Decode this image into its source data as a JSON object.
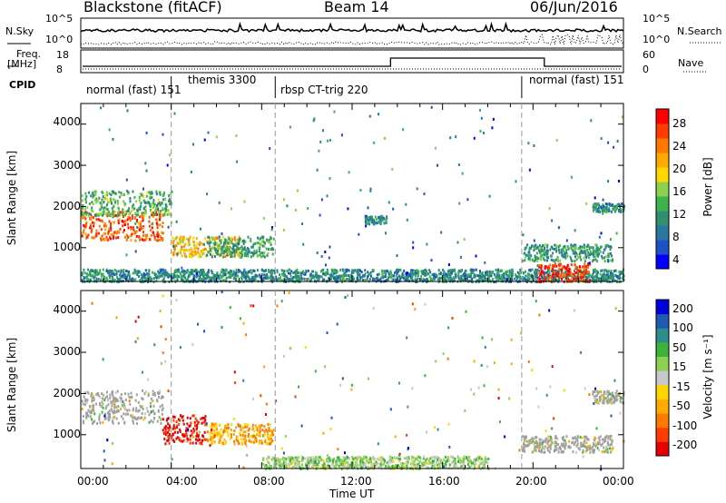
{
  "header": {
    "left": "Blackstone (fitACF)",
    "center": "Beam 14",
    "right": "06/Jun/2016"
  },
  "summary_panels": {
    "nsky_label": "N.Sky",
    "nsky_ticks": [
      "10^5",
      "10^0"
    ],
    "nsearch_label": "N.Search",
    "freq_label": "Freq.",
    "freq_unit": "[MHz]",
    "freq_ticks": [
      "18",
      "8"
    ],
    "nave_label": "Nave",
    "nave_ticks": [
      "60",
      "0"
    ],
    "cpid_label": "CPID"
  },
  "cpid_segments": [
    {
      "label": "normal (fast) 151",
      "start_hour": 0.0
    },
    {
      "label": "themis 3300",
      "start_hour": 4.0
    },
    {
      "label": "rbsp CT-trig 220",
      "start_hour": 8.6
    },
    {
      "label": "normal (fast) 151",
      "start_hour": 19.5
    }
  ],
  "x_tick_labels": [
    "00:00",
    "04:00",
    "08:00",
    "12:00",
    "16:00",
    "20:00",
    "00:00"
  ],
  "x_axis_title": "Time UT",
  "power_panel": {
    "ylabel": "Slant Range [km]",
    "y_ticks": [
      "4000",
      "3000",
      "2000",
      "1000"
    ],
    "colorbar_label": "Power [dB]",
    "colorbar_ticks": [
      "28",
      "24",
      "20",
      "16",
      "12",
      "8",
      "4"
    ],
    "colors": [
      "#0000ff",
      "#1e50c8",
      "#2878a0",
      "#2f8f6e",
      "#3cb44b",
      "#8cd250",
      "#ffd700",
      "#ffaa00",
      "#ff7800",
      "#ff3c00",
      "#ff0000"
    ]
  },
  "velocity_panel": {
    "ylabel": "Slant Range [km]",
    "y_ticks": [
      "4000",
      "3000",
      "2000",
      "1000"
    ],
    "colorbar_label": "Velocity [m s⁻¹]",
    "colorbar_ticks": [
      "200",
      "100",
      "50",
      "15",
      "-15",
      "-50",
      "-100",
      "-200"
    ],
    "colors": [
      "#0000dc",
      "#1e5ab4",
      "#2d8c8c",
      "#3cb43c",
      "#8cd250",
      "#c8c8c8",
      "#ffd700",
      "#ffaa00",
      "#ff7800",
      "#ff3c00",
      "#e60000"
    ],
    "ground_scatter_color": "#a0a0a0"
  },
  "chart_data": [
    {
      "type": "heatmap",
      "title": "Blackstone (fitACF)  Beam 14  06/Jun/2016",
      "xlabel": "Time UT",
      "ylabel": "Slant Range [km]",
      "xlim_hours": [
        0,
        24
      ],
      "ylim_km": [
        180,
        4500
      ],
      "colorbar": "Power [dB]",
      "colorbar_range": [
        0,
        30
      ],
      "features": [
        {
          "hours": [
            0,
            3.6
          ],
          "range_km": [
            1200,
            1900
          ],
          "power_db": 26
        },
        {
          "hours": [
            0,
            4.0
          ],
          "range_km": [
            1800,
            2400
          ],
          "power_db": 12
        },
        {
          "hours": [
            4.0,
            7.0
          ],
          "range_km": [
            800,
            1300
          ],
          "power_db": 20
        },
        {
          "hours": [
            5.5,
            8.5
          ],
          "range_km": [
            800,
            1300
          ],
          "power_db": 10
        },
        {
          "hours": [
            0,
            24
          ],
          "range_km": [
            200,
            500
          ],
          "power_db": 8
        },
        {
          "hours": [
            12.5,
            13.5
          ],
          "range_km": [
            1600,
            1800
          ],
          "power_db": 8
        },
        {
          "hours": [
            20.2,
            22.5
          ],
          "range_km": [
            200,
            650
          ],
          "power_db": 28
        },
        {
          "hours": [
            19.5,
            23.5
          ],
          "range_km": [
            700,
            1100
          ],
          "power_db": 10
        },
        {
          "hours": [
            22.6,
            24
          ],
          "range_km": [
            1900,
            2100
          ],
          "power_db": 8
        }
      ]
    },
    {
      "type": "heatmap",
      "xlabel": "Time UT",
      "ylabel": "Slant Range [km]",
      "xlim_hours": [
        0,
        24
      ],
      "ylim_km": [
        180,
        4500
      ],
      "colorbar": "Velocity [m s-1]",
      "colorbar_range": [
        -200,
        200
      ],
      "features": [
        {
          "hours": [
            0,
            3.6
          ],
          "range_km": [
            1300,
            2100
          ],
          "velocity_ms": 0,
          "ground_scatter": true
        },
        {
          "hours": [
            3.6,
            5.5
          ],
          "range_km": [
            800,
            1500
          ],
          "velocity_ms": -200
        },
        {
          "hours": [
            5.5,
            8.5
          ],
          "range_km": [
            800,
            1300
          ],
          "velocity_ms": -80
        },
        {
          "hours": [
            8.0,
            18.0
          ],
          "range_km": [
            200,
            500
          ],
          "velocity_ms": 30
        },
        {
          "hours": [
            19.5,
            23.5
          ],
          "range_km": [
            600,
            1000
          ],
          "velocity_ms": 0,
          "ground_scatter": true
        },
        {
          "hours": [
            22.6,
            24
          ],
          "range_km": [
            1800,
            2100
          ],
          "velocity_ms": 0,
          "ground_scatter": true
        }
      ]
    }
  ]
}
